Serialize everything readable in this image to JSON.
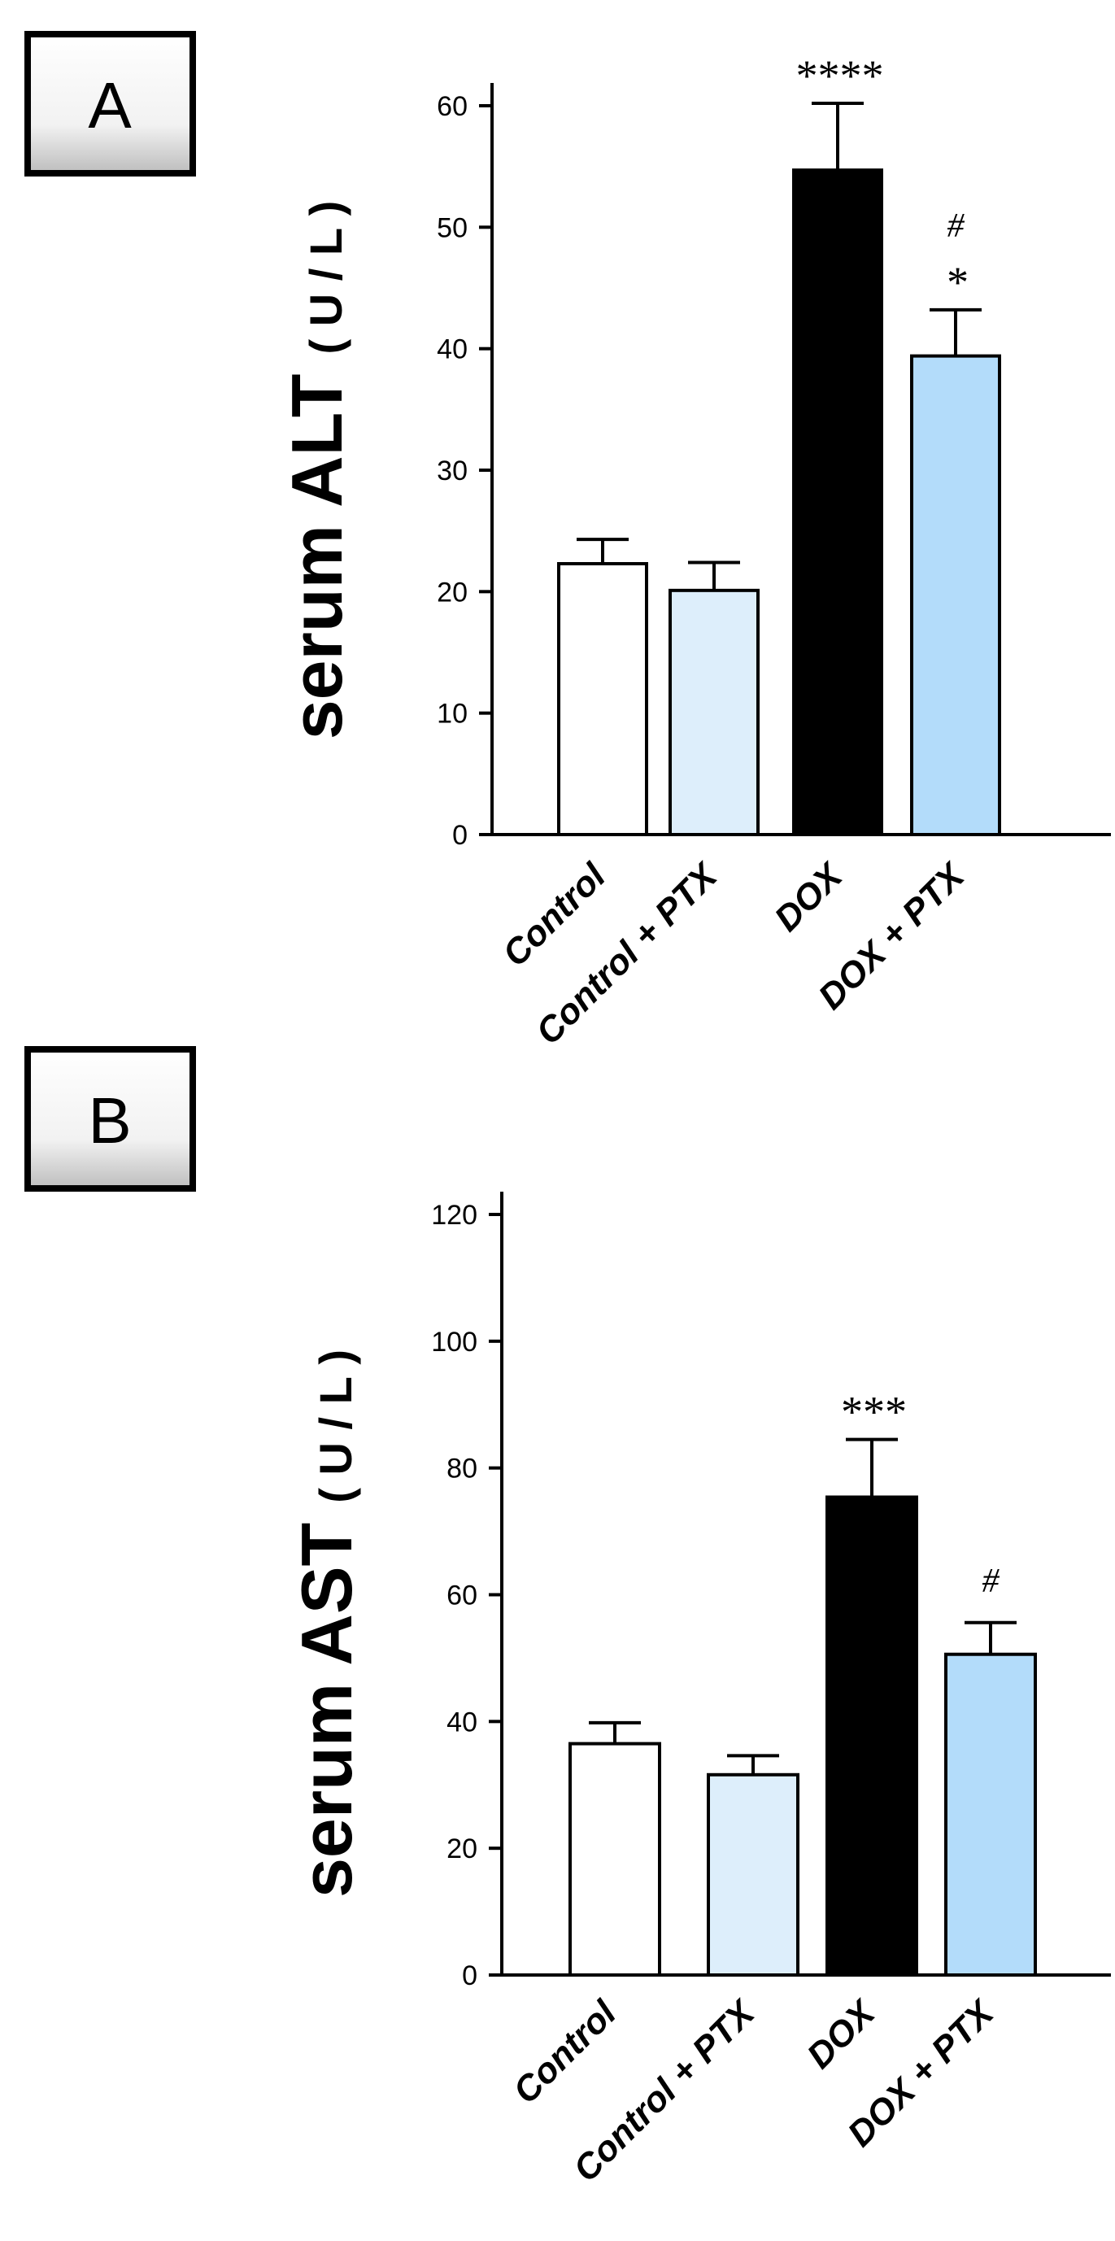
{
  "chart_data": [
    {
      "panel": "A",
      "type": "bar",
      "title": "",
      "ylabel_main": "serum ALT",
      "ylabel_unit": "( U / L )",
      "xlabel": "",
      "ylim": [
        0,
        60
      ],
      "yticks": [
        "0",
        "10",
        "20",
        "30",
        "40",
        "50",
        "60"
      ],
      "categories": [
        "Control",
        "Control + PTX",
        "DOX",
        "DOX + PTX"
      ],
      "values": [
        22.3,
        20.1,
        54.7,
        39.4
      ],
      "errors": [
        2.0,
        2.3,
        5.5,
        3.8
      ],
      "colors": [
        "#ffffff",
        "#ddeefb",
        "#000000",
        "#b3dcfa"
      ],
      "significance": [
        {
          "bar": 2,
          "lines": [
            "****"
          ]
        },
        {
          "bar": 3,
          "lines": [
            "#",
            "*"
          ]
        }
      ]
    },
    {
      "panel": "B",
      "type": "bar",
      "title": "",
      "ylabel_main": "serum AST",
      "ylabel_unit": "( U / L )",
      "xlabel": "",
      "ylim": [
        0,
        120
      ],
      "yticks": [
        "0",
        "20",
        "40",
        "60",
        "80",
        "100",
        "120"
      ],
      "categories": [
        "Control",
        "Control + PTX",
        "DOX",
        "DOX + PTX"
      ],
      "values": [
        36.5,
        31.6,
        75.4,
        50.6
      ],
      "errors": [
        3.3,
        3.0,
        9.1,
        5.0
      ],
      "colors": [
        "#ffffff",
        "#ddeefb",
        "#000000",
        "#b3dcfa"
      ],
      "significance": [
        {
          "bar": 2,
          "lines": [
            "***"
          ]
        },
        {
          "bar": 3,
          "lines": [
            "#"
          ]
        }
      ]
    }
  ]
}
